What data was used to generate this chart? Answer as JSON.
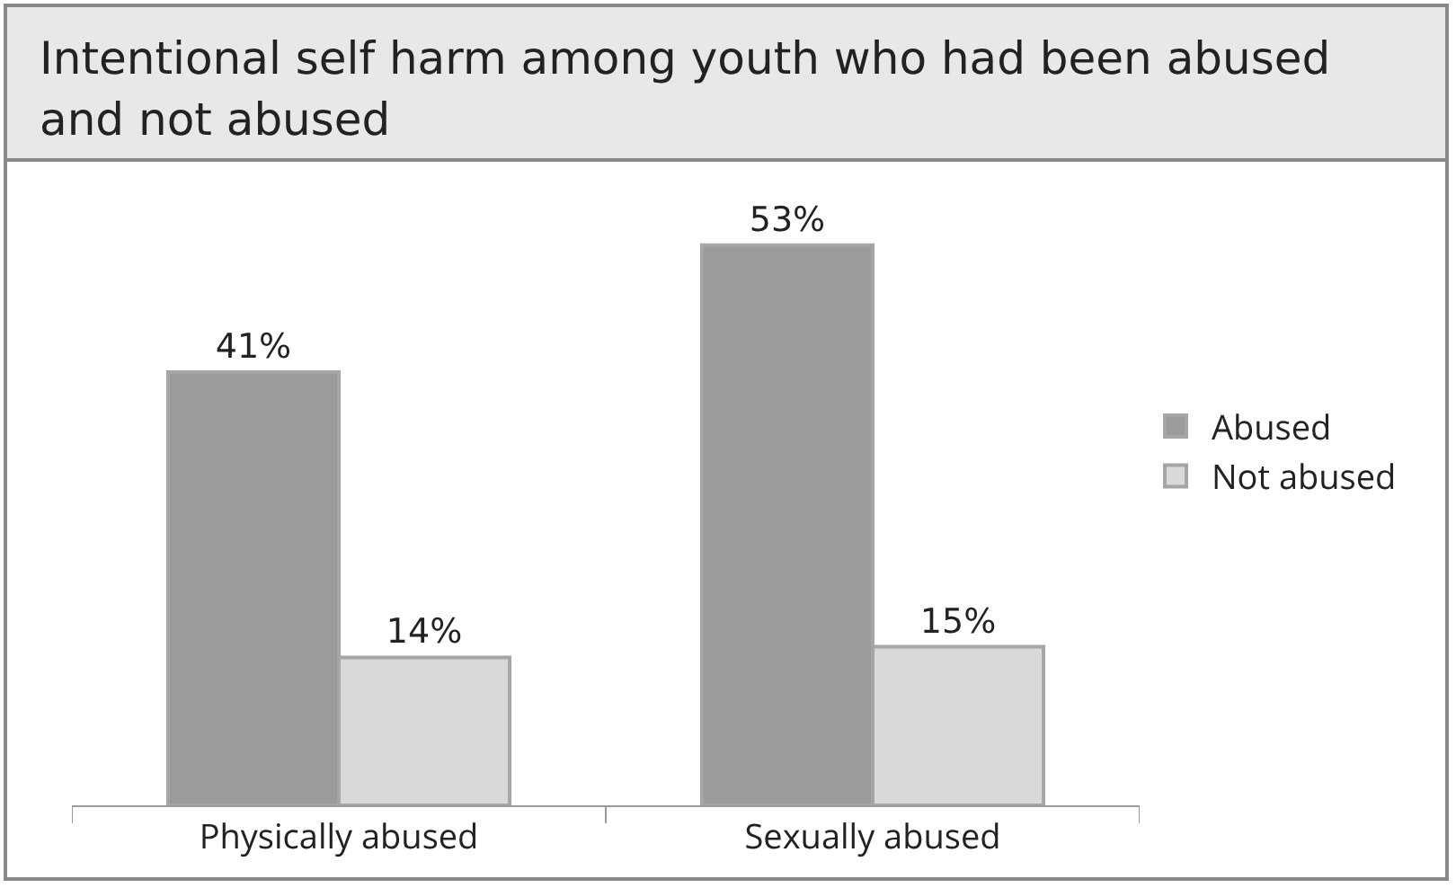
{
  "chart_data": {
    "type": "bar",
    "title": "Intentional self harm among youth who had been abused and not abused",
    "categories": [
      "Physically abused",
      "Sexually abused"
    ],
    "series": [
      {
        "name": "Abused",
        "color": "#9b9b9b",
        "values": [
          41,
          53
        ],
        "value_labels": [
          "41%",
          "53%"
        ]
      },
      {
        "name": "Not abused",
        "color": "#d9d9d9",
        "values": [
          14,
          15
        ],
        "value_labels": [
          "14%",
          "15%"
        ]
      }
    ],
    "legend": "right"
  }
}
